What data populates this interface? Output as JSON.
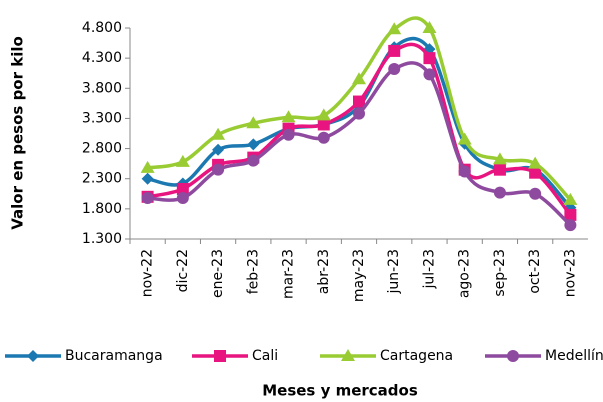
{
  "chart_data": {
    "type": "line",
    "y_label": "Valor en pesos por kilo",
    "x_label": "Meses  y mercados",
    "categories": [
      "nov-22",
      "dic-22",
      "ene-23",
      "feb-23",
      "mar-23",
      "abr-23",
      "may-23",
      "jun-23",
      "jul-23",
      "ago-23",
      "sep-23",
      "oct-23",
      "nov-23"
    ],
    "series": [
      {
        "name": "Bucaramanga",
        "color": "#1b78b0",
        "marker": "diamond",
        "values": [
          2300,
          2220,
          2780,
          2870,
          3130,
          3200,
          3500,
          4480,
          4450,
          2880,
          2450,
          2450,
          1820
        ]
      },
      {
        "name": "Cali",
        "color": "#e8147f",
        "marker": "square",
        "values": [
          2000,
          2130,
          2530,
          2650,
          3130,
          3200,
          3580,
          4420,
          4300,
          2450,
          2450,
          2400,
          1700
        ]
      },
      {
        "name": "Cartagena",
        "color": "#99cc33",
        "marker": "triangle",
        "values": [
          2480,
          2580,
          3030,
          3220,
          3320,
          3350,
          3950,
          4780,
          4800,
          2950,
          2620,
          2550,
          1950
        ]
      },
      {
        "name": "Medellín",
        "color": "#8e4a9e",
        "marker": "circle",
        "values": [
          1980,
          1980,
          2450,
          2600,
          3030,
          2980,
          3380,
          4120,
          4030,
          2420,
          2070,
          2050,
          1530
        ]
      }
    ],
    "ylim": [
      1300,
      4800
    ],
    "yticks": [
      {
        "value": 1300,
        "label": "1.300"
      },
      {
        "value": 1800,
        "label": "1.800"
      },
      {
        "value": 2300,
        "label": "2.300"
      },
      {
        "value": 2800,
        "label": "2.800"
      },
      {
        "value": 3300,
        "label": "3.300"
      },
      {
        "value": 3800,
        "label": "3.800"
      },
      {
        "value": 4300,
        "label": "4.300"
      },
      {
        "value": 4800,
        "label": "4.800"
      }
    ],
    "grid": false,
    "smooth": true,
    "legend": "bottom"
  }
}
